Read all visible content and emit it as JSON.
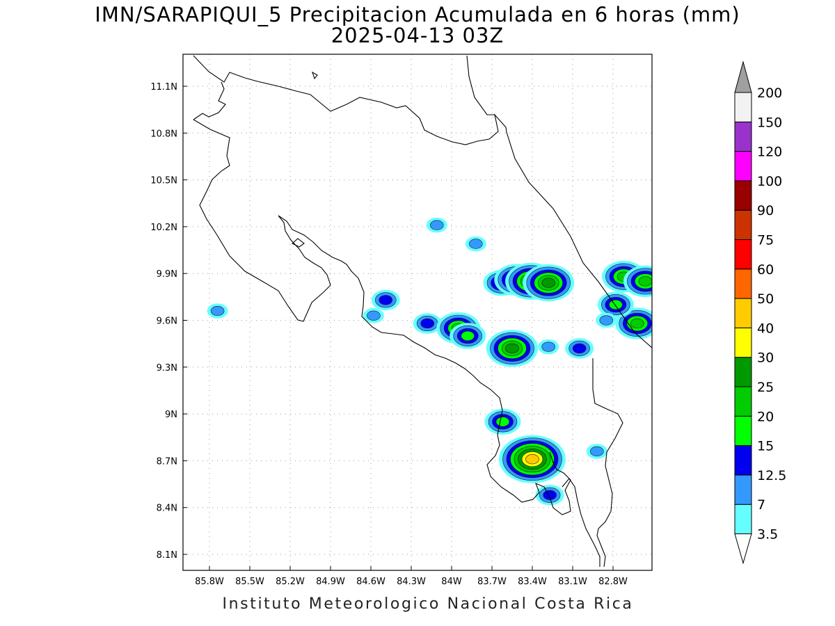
{
  "title_line1": "IMN/SARAPIQUI_5 Precipitacion Acumulada en 6 horas (mm)",
  "title_line2": "2025-04-13 03Z",
  "footer": "Instituto Meteorologico Nacional Costa Rica",
  "map": {
    "lon_ticks": [
      "85.8W",
      "85.5W",
      "85.2W",
      "84.9W",
      "84.6W",
      "84.3W",
      "84W",
      "83.7W",
      "83.4W",
      "83.1W",
      "82.8W"
    ],
    "lat_ticks": [
      "11.1N",
      "10.8N",
      "10.5N",
      "10.2N",
      "9.9N",
      "9.6N",
      "9.3N",
      "9N",
      "8.7N",
      "8.4N",
      "8.1N"
    ],
    "precip_cells": [
      {
        "lon": -85.74,
        "lat": 9.66,
        "level": 2
      },
      {
        "lon": -84.49,
        "lat": 9.73,
        "level": 3
      },
      {
        "lon": -84.18,
        "lat": 9.58,
        "level": 3
      },
      {
        "lon": -83.95,
        "lat": 9.55,
        "level": 5
      },
      {
        "lon": -83.88,
        "lat": 9.5,
        "level": 4
      },
      {
        "lon": -84.58,
        "lat": 9.63,
        "level": 2
      },
      {
        "lon": -83.55,
        "lat": 9.42,
        "level": 6
      },
      {
        "lon": -83.28,
        "lat": 9.43,
        "level": 2
      },
      {
        "lon": -84.11,
        "lat": 10.21,
        "level": 2
      },
      {
        "lon": -83.82,
        "lat": 10.09,
        "level": 2
      },
      {
        "lon": -83.63,
        "lat": 9.84,
        "level": 4
      },
      {
        "lon": -83.52,
        "lat": 9.86,
        "level": 5
      },
      {
        "lon": -83.41,
        "lat": 9.85,
        "level": 6
      },
      {
        "lon": -83.28,
        "lat": 9.84,
        "level": 6
      },
      {
        "lon": -83.62,
        "lat": 8.95,
        "level": 4
      },
      {
        "lon": -83.4,
        "lat": 8.71,
        "level": 8
      },
      {
        "lon": -83.27,
        "lat": 8.48,
        "level": 3
      },
      {
        "lon": -82.92,
        "lat": 8.76,
        "level": 2
      },
      {
        "lon": -82.72,
        "lat": 9.88,
        "level": 5
      },
      {
        "lon": -82.56,
        "lat": 9.85,
        "level": 5
      },
      {
        "lon": -82.62,
        "lat": 9.58,
        "level": 5
      },
      {
        "lon": -82.78,
        "lat": 9.7,
        "level": 4
      },
      {
        "lon": -83.05,
        "lat": 9.42,
        "level": 3
      },
      {
        "lon": -82.85,
        "lat": 9.6,
        "level": 2
      }
    ]
  },
  "colorbar": {
    "labels": [
      "3.5",
      "7",
      "12.5",
      "15",
      "20",
      "25",
      "30",
      "40",
      "50",
      "60",
      "75",
      "90",
      "100",
      "120",
      "150",
      "200"
    ],
    "colors": [
      "#66ffff",
      "#3399ff",
      "#0000ee",
      "#00ff00",
      "#00cc00",
      "#009900",
      "#ffff00",
      "#ffcc00",
      "#ff6600",
      "#ff0000",
      "#cc3300",
      "#990000",
      "#ff00ff",
      "#9933cc",
      "#f2f2f2"
    ],
    "over_color": "#a0a0a0"
  }
}
